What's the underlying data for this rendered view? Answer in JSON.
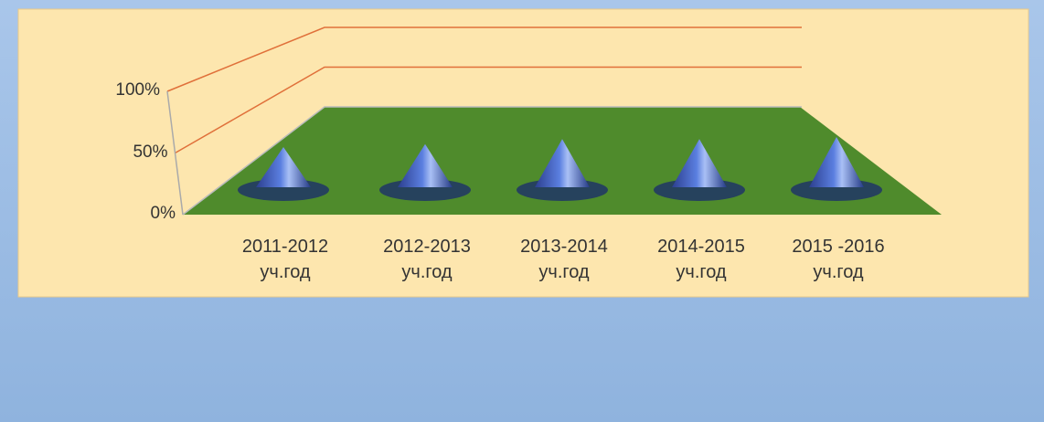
{
  "chart_data": {
    "type": "cone3d",
    "categories": [
      "2011-2012\nуч.год",
      "2012-2013\nуч.год",
      "2013-2014\nуч.год",
      "2014-2015\nуч.год",
      "2015 -2016\nуч.год"
    ],
    "values": [
      40,
      43,
      48,
      48,
      50
    ],
    "color": "#4a6fd0",
    "ylim": [
      0,
      100
    ],
    "yticks": [
      {
        "value": 0,
        "label": "0%"
      },
      {
        "value": 50,
        "label": "50%"
      },
      {
        "value": 100,
        "label": "100%"
      }
    ],
    "grid": true
  }
}
